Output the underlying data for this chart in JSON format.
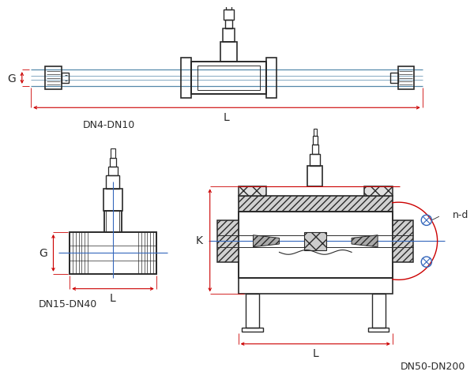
{
  "bg_color": "#ffffff",
  "line_color": "#2a2a2a",
  "red_color": "#cc0000",
  "blue_color": "#3366bb",
  "hatch_color": "#555555",
  "label_dn4": "DN4-DN10",
  "label_dn15": "DN15-DN40",
  "label_dn50": "DN50-DN200",
  "label_G": "G",
  "label_L": "L",
  "label_K": "K",
  "label_nd": "n-d",
  "figsize": [
    6.0,
    4.81
  ],
  "dpi": 100
}
